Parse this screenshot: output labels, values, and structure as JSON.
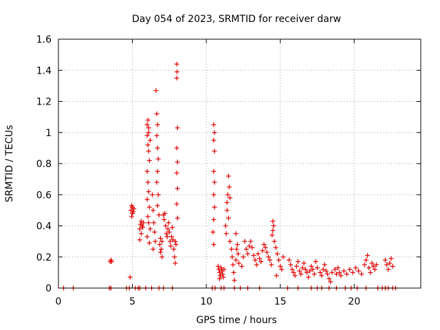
{
  "chart_data": {
    "type": "scatter",
    "title": "Day 054 of 2023, SRMTID for receiver darw",
    "xlabel": "GPS time / hours",
    "ylabel": "SRMTID / TECUs",
    "xlim": [
      0,
      24.5
    ],
    "ylim": [
      0,
      1.6
    ],
    "xticks": [
      0,
      5,
      10,
      15,
      20
    ],
    "yticks": [
      0,
      0.2,
      0.4,
      0.6,
      0.8,
      1,
      1.2,
      1.4,
      1.6
    ],
    "grid": true,
    "marker": "+",
    "color": "#e00000",
    "series": [
      {
        "name": "SRMTID",
        "points": [
          [
            0.35,
            0
          ],
          [
            1.0,
            0
          ],
          [
            3.45,
            0
          ],
          [
            3.55,
            0
          ],
          [
            3.5,
            0.17
          ],
          [
            3.55,
            0.18
          ],
          [
            3.6,
            0.17
          ],
          [
            4.6,
            0
          ],
          [
            4.8,
            0
          ],
          [
            4.85,
            0.07
          ],
          [
            4.9,
            0.5
          ],
          [
            5.0,
            0.52
          ],
          [
            4.95,
            0.46
          ],
          [
            5.05,
            0.49
          ],
          [
            5.1,
            0.51
          ],
          [
            5.0,
            0.48
          ],
          [
            4.95,
            0.53
          ],
          [
            5.2,
            0
          ],
          [
            5.4,
            0
          ],
          [
            5.5,
            0
          ],
          [
            5.5,
            0.38
          ],
          [
            5.55,
            0.41
          ],
          [
            5.6,
            0.43
          ],
          [
            5.65,
            0.4
          ],
          [
            5.7,
            0.39
          ],
          [
            5.6,
            0.35
          ],
          [
            5.75,
            0.42
          ],
          [
            5.5,
            0.31
          ],
          [
            5.9,
            0
          ],
          [
            6.0,
            1.05
          ],
          [
            6.05,
            1.08
          ],
          [
            6.1,
            1.03
          ],
          [
            6.0,
            0.98
          ],
          [
            6.05,
            0.92
          ],
          [
            6.1,
            0.88
          ],
          [
            6.15,
            0.82
          ],
          [
            6.0,
            0.75
          ],
          [
            6.05,
            0.68
          ],
          [
            6.1,
            0.62
          ],
          [
            6.0,
            0.57
          ],
          [
            6.15,
            0.52
          ],
          [
            6.05,
            0.46
          ],
          [
            6.1,
            0.42
          ],
          [
            6.2,
            0.38
          ],
          [
            6.0,
            0.33
          ],
          [
            6.15,
            0.29
          ],
          [
            6.1,
            1.0
          ],
          [
            6.2,
            0.95
          ],
          [
            6.3,
            0
          ],
          [
            6.35,
            0.6
          ],
          [
            6.4,
            0.5
          ],
          [
            6.45,
            0.42
          ],
          [
            6.5,
            0.36
          ],
          [
            6.55,
            0.3
          ],
          [
            6.4,
            0.25
          ],
          [
            6.6,
            1.27
          ],
          [
            6.65,
            1.12
          ],
          [
            6.7,
            1.05
          ],
          [
            6.65,
            0.98
          ],
          [
            6.7,
            0.9
          ],
          [
            6.75,
            0.83
          ],
          [
            6.7,
            0.75
          ],
          [
            6.65,
            0.68
          ],
          [
            6.75,
            0.6
          ],
          [
            6.7,
            0.53
          ],
          [
            6.8,
            0.47
          ],
          [
            6.8,
            0
          ],
          [
            6.85,
            0.28
          ],
          [
            6.9,
            0.23
          ],
          [
            6.95,
            0.25
          ],
          [
            7.0,
            0.2
          ],
          [
            6.9,
            0.32
          ],
          [
            7.0,
            0.3
          ],
          [
            7.1,
            0
          ],
          [
            7.1,
            0.47
          ],
          [
            7.15,
            0.44
          ],
          [
            7.2,
            0.48
          ],
          [
            7.25,
            0.4
          ],
          [
            7.3,
            0.35
          ],
          [
            7.35,
            0.33
          ],
          [
            7.4,
            0.38
          ],
          [
            7.45,
            0.42
          ],
          [
            7.5,
            0.36
          ],
          [
            7.55,
            0.3
          ],
          [
            7.6,
            0.27
          ],
          [
            7.65,
            0.33
          ],
          [
            7.7,
            0.39
          ],
          [
            7.75,
            0.31
          ],
          [
            7.8,
            0.25
          ],
          [
            7.85,
            0.2
          ],
          [
            7.9,
            0.16
          ],
          [
            7.95,
            0.28
          ],
          [
            7.7,
            0
          ],
          [
            7.9,
            0.3
          ],
          [
            8.0,
            1.44
          ],
          [
            8.02,
            1.39
          ],
          [
            8.0,
            1.35
          ],
          [
            8.05,
            1.03
          ],
          [
            8.0,
            0.9
          ],
          [
            8.05,
            0.81
          ],
          [
            8.0,
            0.74
          ],
          [
            8.05,
            0.64
          ],
          [
            8.0,
            0.54
          ],
          [
            8.05,
            0.45
          ],
          [
            10.4,
            0
          ],
          [
            10.6,
            0
          ],
          [
            10.5,
            1.05
          ],
          [
            10.55,
            1.0
          ],
          [
            10.5,
            0.95
          ],
          [
            10.55,
            0.88
          ],
          [
            10.5,
            0.75
          ],
          [
            10.55,
            0.68
          ],
          [
            10.5,
            0.6
          ],
          [
            10.55,
            0.52
          ],
          [
            10.5,
            0.44
          ],
          [
            10.45,
            0.36
          ],
          [
            10.5,
            0.28
          ],
          [
            10.8,
            0.14
          ],
          [
            10.85,
            0.12
          ],
          [
            10.9,
            0.1
          ],
          [
            10.95,
            0.08
          ],
          [
            11.0,
            0.13
          ],
          [
            11.05,
            0.11
          ],
          [
            11.1,
            0.09
          ],
          [
            11.15,
            0.07
          ],
          [
            11.2,
            0.12
          ],
          [
            10.9,
            0.06
          ],
          [
            11.0,
            0
          ],
          [
            11.2,
            0
          ],
          [
            11.3,
            0.4
          ],
          [
            11.35,
            0.35
          ],
          [
            11.4,
            0.55
          ],
          [
            11.45,
            0.6
          ],
          [
            11.5,
            0.72
          ],
          [
            11.55,
            0.65
          ],
          [
            11.6,
            0.58
          ],
          [
            11.4,
            0.5
          ],
          [
            11.5,
            0.45
          ],
          [
            11.6,
            0.3
          ],
          [
            11.7,
            0.25
          ],
          [
            11.75,
            0.2
          ],
          [
            11.8,
            0.15
          ],
          [
            11.85,
            0.1
          ],
          [
            11.9,
            0.05
          ],
          [
            12.0,
            0.18
          ],
          [
            12.05,
            0.25
          ],
          [
            12.1,
            0.28
          ],
          [
            12.15,
            0.22
          ],
          [
            12.2,
            0.16
          ],
          [
            12.0,
            0.35
          ],
          [
            11.9,
            0
          ],
          [
            12.3,
            0
          ],
          [
            12.4,
            0.14
          ],
          [
            12.5,
            0.2
          ],
          [
            12.6,
            0.3
          ],
          [
            12.7,
            0.25
          ],
          [
            12.8,
            0.22
          ],
          [
            12.9,
            0.27
          ],
          [
            13.0,
            0.3
          ],
          [
            13.1,
            0.26
          ],
          [
            13.2,
            0.21
          ],
          [
            13.3,
            0.18
          ],
          [
            13.4,
            0.15
          ],
          [
            12.8,
            0
          ],
          [
            13.6,
            0
          ],
          [
            13.5,
            0.22
          ],
          [
            13.6,
            0.19
          ],
          [
            13.7,
            0.17
          ],
          [
            13.8,
            0.24
          ],
          [
            13.9,
            0.28
          ],
          [
            14.0,
            0.26
          ],
          [
            14.1,
            0.23
          ],
          [
            14.2,
            0.2
          ],
          [
            14.3,
            0.18
          ],
          [
            14.4,
            0.15
          ],
          [
            14.5,
            0.43
          ],
          [
            14.55,
            0.4
          ],
          [
            14.5,
            0.37
          ],
          [
            14.45,
            0.34
          ],
          [
            14.6,
            0.3
          ],
          [
            14.7,
            0.26
          ],
          [
            14.8,
            0.22
          ],
          [
            14.9,
            0.18
          ],
          [
            15.0,
            0.14
          ],
          [
            15.1,
            0.12
          ],
          [
            15.2,
            0.2
          ],
          [
            14.75,
            0.08
          ],
          [
            15.5,
            0
          ],
          [
            15.6,
            0.18
          ],
          [
            15.7,
            0.15
          ],
          [
            15.8,
            0.12
          ],
          [
            15.9,
            0.1
          ],
          [
            16.0,
            0.08
          ],
          [
            16.1,
            0.14
          ],
          [
            16.2,
            0.17
          ],
          [
            16.3,
            0.11
          ],
          [
            16.4,
            0.09
          ],
          [
            16.5,
            0.13
          ],
          [
            16.6,
            0.16
          ],
          [
            16.7,
            0.12
          ],
          [
            16.8,
            0.1
          ],
          [
            16.9,
            0.07
          ],
          [
            17.0,
            0.11
          ],
          [
            17.1,
            0.14
          ],
          [
            17.2,
            0.12
          ],
          [
            17.3,
            0.09
          ],
          [
            17.4,
            0.17
          ],
          [
            17.5,
            0.13
          ],
          [
            16.2,
            0
          ],
          [
            17.1,
            0
          ],
          [
            17.5,
            0
          ],
          [
            17.8,
            0
          ],
          [
            17.7,
            0.1
          ],
          [
            17.8,
            0.08
          ],
          [
            17.9,
            0.12
          ],
          [
            18.0,
            0.15
          ],
          [
            18.1,
            0.11
          ],
          [
            18.2,
            0.09
          ],
          [
            18.3,
            0.06
          ],
          [
            18.4,
            0.04
          ],
          [
            18.5,
            0.1
          ],
          [
            18.7,
            0.12
          ],
          [
            18.8,
            0.09
          ],
          [
            18.9,
            0.13
          ],
          [
            19.0,
            0.1
          ],
          [
            19.1,
            0.08
          ],
          [
            19.3,
            0.11
          ],
          [
            19.5,
            0.09
          ],
          [
            19.7,
            0.12
          ],
          [
            19.9,
            0.1
          ],
          [
            20.1,
            0.13
          ],
          [
            20.3,
            0.11
          ],
          [
            20.5,
            0.09
          ],
          [
            18.3,
            0
          ],
          [
            18.8,
            0
          ],
          [
            19.4,
            0
          ],
          [
            19.8,
            0
          ],
          [
            20.2,
            0
          ],
          [
            20.7,
            0.15
          ],
          [
            20.8,
            0.18
          ],
          [
            20.9,
            0.21
          ],
          [
            21.0,
            0.13
          ],
          [
            21.1,
            0.1
          ],
          [
            21.2,
            0.16
          ],
          [
            21.3,
            0.14
          ],
          [
            21.4,
            0.12
          ],
          [
            21.5,
            0.15
          ],
          [
            20.8,
            0
          ],
          [
            21.6,
            0
          ],
          [
            21.9,
            0
          ],
          [
            22.1,
            0
          ],
          [
            22.3,
            0
          ],
          [
            22.6,
            0
          ],
          [
            22.8,
            0
          ],
          [
            22.1,
            0.18
          ],
          [
            22.2,
            0.15
          ],
          [
            22.3,
            0.12
          ],
          [
            22.4,
            0.16
          ],
          [
            22.5,
            0.19
          ],
          [
            22.6,
            0.14
          ]
        ]
      }
    ]
  }
}
